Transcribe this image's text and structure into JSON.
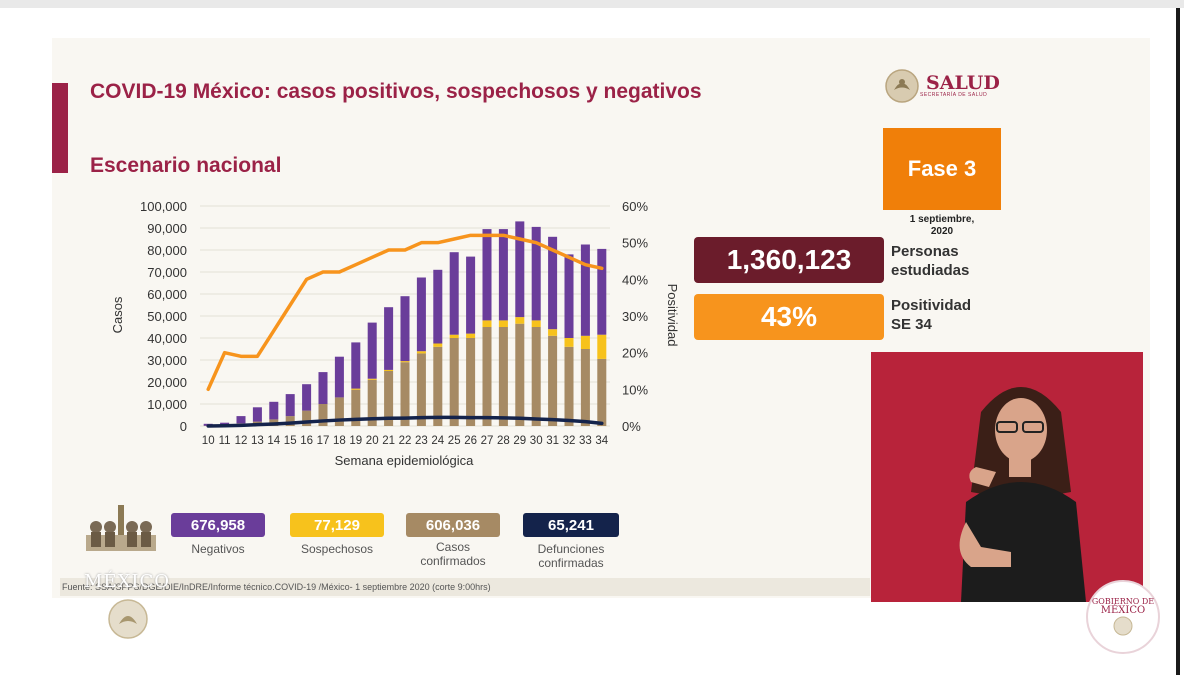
{
  "header": {
    "title": "COVID-19 México: casos positivos, sospechosos y negativos",
    "subtitle": "Escenario nacional",
    "logo_text": "SALUD",
    "logo_subtext": "SECRETARÍA DE SALUD"
  },
  "phase": {
    "label": "Fase 3",
    "date_line1": "1 septiembre,",
    "date_line2": "2020",
    "color": "#f07f09"
  },
  "kpis": [
    {
      "value": "1,360,123",
      "label_line1": "Personas",
      "label_line2": "estudiadas",
      "color": "#6b1c2b"
    },
    {
      "value": "43%",
      "label_line1": "Positividad",
      "label_line2": "SE 34",
      "color": "#f7941d"
    }
  ],
  "legend": [
    {
      "value": "676,958",
      "label_line1": "Negativos",
      "label_line2": "",
      "color": "#6a3d9a",
      "text_color": "#ffffff"
    },
    {
      "value": "77,129",
      "label_line1": "Sospechosos",
      "label_line2": "",
      "color": "#f7c21c",
      "text_color": "#ffffff"
    },
    {
      "value": "606,036",
      "label_line1": "Casos",
      "label_line2": "confirmados",
      "color": "#a68a64",
      "text_color": "#ffffff"
    },
    {
      "value": "65,241",
      "label_line1": "Defunciones",
      "label_line2": "confirmadas",
      "color": "#14234b",
      "text_color": "#ffffff"
    }
  ],
  "source": "Fuente: SSA/SPPS/DGE/DIE/InDRE/Informe técnico.COVID-19 /México- 1 septiembre 2020 (corte 9:00hrs)",
  "watermark": "MÉXICO",
  "gob_logo": {
    "line1": "GOBIERNO DE",
    "line2": "MÉXICO"
  },
  "chart_data": {
    "type": "bar",
    "stacked": true,
    "xlabel": "Semana epidemiológica",
    "ylabel": "Casos",
    "y2label": "Positividad",
    "ylim": [
      0,
      100000
    ],
    "y2lim": [
      0,
      60
    ],
    "yticks": [
      "0",
      "10,000",
      "20,000",
      "30,000",
      "40,000",
      "50,000",
      "60,000",
      "70,000",
      "80,000",
      "90,000",
      "100,000"
    ],
    "y2ticks": [
      "0%",
      "10%",
      "20%",
      "30%",
      "40%",
      "50%",
      "60%"
    ],
    "categories": [
      "10",
      "11",
      "12",
      "13",
      "14",
      "15",
      "16",
      "17",
      "18",
      "19",
      "20",
      "21",
      "22",
      "23",
      "24",
      "25",
      "26",
      "27",
      "28",
      "29",
      "30",
      "31",
      "32",
      "33",
      "34"
    ],
    "series": [
      {
        "name": "Casos confirmados",
        "kind": "bar",
        "color": "#a68a64",
        "values": [
          100,
          500,
          1200,
          2000,
          3000,
          4500,
          7000,
          10000,
          13000,
          16500,
          21000,
          25000,
          29000,
          33000,
          36000,
          40000,
          40000,
          45000,
          45000,
          46500,
          45000,
          41000,
          36000,
          35000,
          30500
        ]
      },
      {
        "name": "Sospechosos",
        "kind": "bar",
        "color": "#f7c21c",
        "values": [
          0,
          0,
          0,
          0,
          0,
          0,
          0,
          0,
          0,
          500,
          500,
          500,
          500,
          1000,
          1500,
          1500,
          2000,
          3000,
          3000,
          3000,
          3000,
          3000,
          4000,
          6000,
          11000
        ]
      },
      {
        "name": "Negativos",
        "kind": "bar",
        "color": "#6a3d9a",
        "values": [
          900,
          1000,
          3300,
          6500,
          8000,
          10000,
          12000,
          14500,
          18500,
          21000,
          25500,
          28500,
          29500,
          33500,
          33500,
          37500,
          35000,
          41500,
          41500,
          43500,
          42500,
          42000,
          38000,
          41500,
          39000
        ]
      },
      {
        "name": "Defunciones confirmadas",
        "kind": "line",
        "axis": "left",
        "color": "#14234b",
        "values": [
          0,
          100,
          300,
          600,
          900,
          1300,
          1800,
          2300,
          2700,
          3000,
          3300,
          3500,
          3600,
          3800,
          3900,
          3900,
          3800,
          3800,
          3700,
          3500,
          3200,
          2900,
          2500,
          2000,
          1200
        ]
      },
      {
        "name": "Positividad",
        "kind": "line",
        "axis": "right",
        "color": "#f7941d",
        "values": [
          10,
          20,
          19,
          19,
          26,
          33,
          40,
          42,
          42,
          44,
          46,
          48,
          48,
          50,
          50,
          51,
          52,
          52,
          52,
          51,
          50,
          48,
          46,
          44,
          43
        ]
      }
    ]
  }
}
